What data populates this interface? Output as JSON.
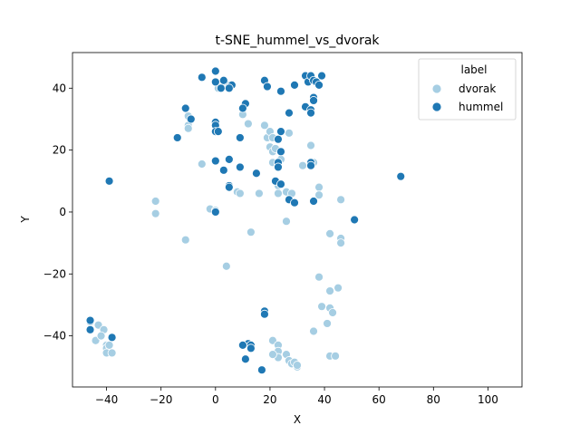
{
  "chart_data": {
    "type": "scatter",
    "title": "t-SNE_hummel_vs_dvorak",
    "xlabel": "X",
    "ylabel": "Y",
    "xlim": [
      -52.5,
      112.5
    ],
    "ylim": [
      -56.5,
      51.5
    ],
    "xticks": [
      -40,
      -20,
      0,
      20,
      40,
      60,
      80,
      100
    ],
    "yticks": [
      -40,
      -20,
      0,
      20,
      40
    ],
    "grid": false,
    "legend": {
      "title": "label",
      "placement": "top-right"
    },
    "series": [
      {
        "name": "dvorak",
        "color": "#a6cee3",
        "points": [
          [
            -10,
            31
          ],
          [
            -10,
            28
          ],
          [
            -10,
            27
          ],
          [
            -5,
            15.5
          ],
          [
            1,
            40
          ],
          [
            3,
            41
          ],
          [
            5,
            41
          ],
          [
            10,
            31.5
          ],
          [
            12,
            28.5
          ],
          [
            18,
            28
          ],
          [
            19,
            24
          ],
          [
            20,
            26
          ],
          [
            21,
            24
          ],
          [
            20,
            21
          ],
          [
            21,
            19.5
          ],
          [
            22,
            20.5
          ],
          [
            21,
            16
          ],
          [
            23,
            15
          ],
          [
            23,
            14.5
          ],
          [
            24,
            17
          ],
          [
            23,
            8.5
          ],
          [
            26,
            6.5
          ],
          [
            28,
            6
          ],
          [
            23,
            6
          ],
          [
            16,
            6
          ],
          [
            8,
            6.5
          ],
          [
            9,
            6
          ],
          [
            -2,
            1
          ],
          [
            0,
            0.5
          ],
          [
            32,
            15
          ],
          [
            35,
            21.5
          ],
          [
            36,
            16
          ],
          [
            27,
            25.5
          ],
          [
            38,
            8
          ],
          [
            38,
            5.5
          ],
          [
            46,
            4
          ],
          [
            -22,
            3.5
          ],
          [
            -22,
            -0.5
          ],
          [
            -11,
            -9
          ],
          [
            13,
            -6.5
          ],
          [
            4,
            -17.5
          ],
          [
            26,
            -3
          ],
          [
            38,
            -21
          ],
          [
            42,
            -7
          ],
          [
            46,
            -8.5
          ],
          [
            46,
            -10
          ],
          [
            45,
            -24.5
          ],
          [
            42,
            -25.5
          ],
          [
            39,
            -30.5
          ],
          [
            42,
            -31
          ],
          [
            43,
            -32.5
          ],
          [
            41,
            -36
          ],
          [
            36,
            -38.5
          ],
          [
            -46,
            -35.5
          ],
          [
            -43,
            -36.5
          ],
          [
            -41,
            -38
          ],
          [
            -44,
            -41.5
          ],
          [
            -42,
            -40
          ],
          [
            -40,
            -43
          ],
          [
            -40,
            -44
          ],
          [
            -40,
            -45.5
          ],
          [
            -38,
            -45.5
          ],
          [
            -39,
            -43
          ],
          [
            21,
            -41.5
          ],
          [
            23,
            -43
          ],
          [
            23,
            -45
          ],
          [
            23,
            -47
          ],
          [
            21,
            -46
          ],
          [
            26,
            -46
          ],
          [
            27,
            -48
          ],
          [
            28,
            -49
          ],
          [
            29,
            -48.5
          ],
          [
            30,
            -50
          ],
          [
            30,
            -49.5
          ],
          [
            42,
            -46.5
          ],
          [
            44,
            -46.5
          ]
        ]
      },
      {
        "name": "hummel",
        "color": "#1f78b4",
        "points": [
          [
            -5,
            43.5
          ],
          [
            0,
            45.5
          ],
          [
            0,
            42
          ],
          [
            2,
            40
          ],
          [
            3,
            42.5
          ],
          [
            6,
            41
          ],
          [
            5,
            40
          ],
          [
            11,
            35
          ],
          [
            10,
            33.5
          ],
          [
            18,
            42.5
          ],
          [
            19,
            40.5
          ],
          [
            24,
            39
          ],
          [
            27,
            32
          ],
          [
            29,
            41
          ],
          [
            33,
            44
          ],
          [
            34,
            42
          ],
          [
            35,
            44
          ],
          [
            36,
            42.5
          ],
          [
            37,
            42
          ],
          [
            38,
            41
          ],
          [
            39,
            44
          ],
          [
            33,
            34
          ],
          [
            35,
            33
          ],
          [
            35,
            32
          ],
          [
            36,
            37
          ],
          [
            36,
            36
          ],
          [
            -11,
            33.5
          ],
          [
            -9,
            30
          ],
          [
            -14,
            24
          ],
          [
            0,
            29
          ],
          [
            0,
            28
          ],
          [
            0,
            26
          ],
          [
            1,
            26
          ],
          [
            9,
            24
          ],
          [
            24,
            26
          ],
          [
            23,
            23.5
          ],
          [
            24,
            19.5
          ],
          [
            5,
            17
          ],
          [
            3,
            13.5
          ],
          [
            9,
            14.5
          ],
          [
            15,
            12.5
          ],
          [
            23,
            16
          ],
          [
            23,
            14.5
          ],
          [
            0,
            16.5
          ],
          [
            35,
            16
          ],
          [
            35,
            15
          ],
          [
            22,
            10
          ],
          [
            24,
            9
          ],
          [
            5,
            8.5
          ],
          [
            5,
            8
          ],
          [
            27,
            4
          ],
          [
            29,
            3
          ],
          [
            36,
            3.5
          ],
          [
            0,
            0
          ],
          [
            -39,
            10
          ],
          [
            68,
            11.5
          ],
          [
            51,
            -2.5
          ],
          [
            -46,
            -35
          ],
          [
            -46,
            -38
          ],
          [
            -38,
            -40.5
          ],
          [
            18,
            -32
          ],
          [
            18,
            -33
          ],
          [
            12,
            -42.5
          ],
          [
            10,
            -43
          ],
          [
            11,
            -47.5
          ],
          [
            13,
            -43
          ],
          [
            13,
            -44
          ],
          [
            17,
            -51
          ]
        ]
      }
    ]
  }
}
